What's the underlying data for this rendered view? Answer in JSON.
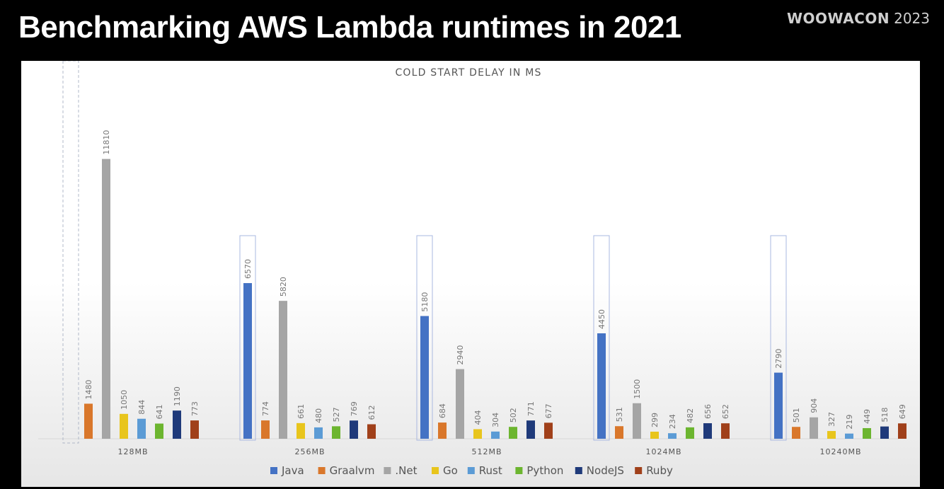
{
  "header": {
    "title": "Benchmarking AWS Lambda runtimes in 2021",
    "brand_name": "WOOWACON",
    "brand_year": "2023"
  },
  "chart_data": {
    "type": "bar",
    "title": "COLD START DELAY IN MS",
    "xlabel": "",
    "ylabel": "",
    "ylim": [
      0,
      14000
    ],
    "grid": false,
    "legend_position": "bottom",
    "categories": [
      "128MB",
      "256MB",
      "512MB",
      "1024MB",
      "10240MB"
    ],
    "series": [
      {
        "name": "Java",
        "color": "#4472c4",
        "values": [
          null,
          6570,
          5180,
          4450,
          2790
        ]
      },
      {
        "name": "Graalvm",
        "color": "#d9772b",
        "values": [
          1480,
          774,
          684,
          531,
          501
        ]
      },
      {
        "name": ".Net",
        "color": "#a5a5a5",
        "values": [
          11810,
          5820,
          2940,
          1500,
          904
        ]
      },
      {
        "name": "Go",
        "color": "#e8c51c",
        "values": [
          1050,
          661,
          404,
          299,
          327
        ]
      },
      {
        "name": "Rust",
        "color": "#5b9bd5",
        "values": [
          844,
          480,
          304,
          234,
          219
        ]
      },
      {
        "name": "Python",
        "color": "#6cb52f",
        "values": [
          641,
          527,
          502,
          482,
          449
        ]
      },
      {
        "name": "NodeJS",
        "color": "#1f3a7a",
        "values": [
          1190,
          769,
          771,
          656,
          518
        ]
      },
      {
        "name": "Ruby",
        "color": "#a0401a",
        "values": [
          773,
          612,
          677,
          652,
          649
        ]
      }
    ],
    "highlighted_series": "Java"
  }
}
